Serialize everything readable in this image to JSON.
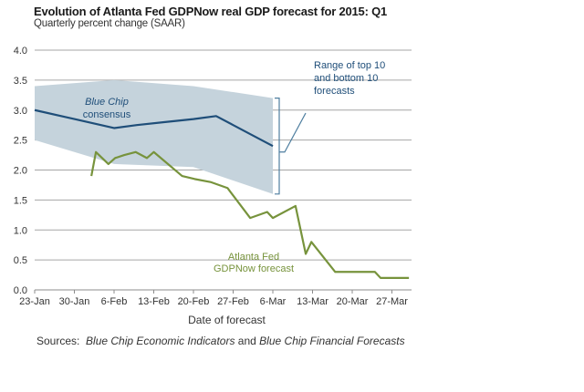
{
  "chart_data": {
    "type": "line",
    "title": "Evolution of Atlanta Fed GDPNow real GDP forecast for 2015: Q1",
    "subtitle": "Quarterly percent change (SAAR)",
    "xlabel": "Date of forecast",
    "ylabel": "",
    "ylim": [
      0,
      4
    ],
    "yticks": [
      "0.0",
      "0.5",
      "1.0",
      "1.5",
      "2.0",
      "2.5",
      "3.0",
      "3.5",
      "4.0"
    ],
    "xlim_days": [
      0,
      67
    ],
    "x_day0": "23-Jan",
    "xticks": [
      {
        "day": 0,
        "label": "23-Jan"
      },
      {
        "day": 7,
        "label": "30-Jan"
      },
      {
        "day": 14,
        "label": "6-Feb"
      },
      {
        "day": 21,
        "label": "13-Feb"
      },
      {
        "day": 28,
        "label": "20-Feb"
      },
      {
        "day": 35,
        "label": "27-Feb"
      },
      {
        "day": 42,
        "label": "6-Mar"
      },
      {
        "day": 49,
        "label": "13-Mar"
      },
      {
        "day": 56,
        "label": "20-Mar"
      },
      {
        "day": 63,
        "label": "27-Mar"
      }
    ],
    "grid": true,
    "series": [
      {
        "name": "Blue Chip consensus",
        "color": "#1f4e79",
        "x": [
          0,
          7,
          14,
          18,
          23,
          28,
          32,
          35,
          38,
          42
        ],
        "y": [
          3.0,
          2.85,
          2.7,
          2.75,
          2.8,
          2.85,
          2.9,
          2.75,
          2.6,
          2.4
        ]
      },
      {
        "name": "Atlanta Fed GDPNow forecast",
        "color": "#77933c",
        "x": [
          10,
          10.8,
          13,
          14.2,
          15.8,
          17.8,
          19.8,
          21,
          26,
          28.2,
          31,
          34,
          38,
          41,
          42,
          46,
          47.8,
          48.8,
          53,
          60,
          61,
          66
        ],
        "y": [
          1.9,
          2.3,
          2.1,
          2.2,
          2.25,
          2.3,
          2.2,
          2.3,
          1.9,
          1.85,
          1.8,
          1.7,
          1.2,
          1.3,
          1.2,
          1.4,
          0.6,
          0.8,
          0.3,
          0.3,
          0.2,
          0.2
        ]
      }
    ],
    "band": {
      "name": "Range of top 10 and bottom 10 forecasts",
      "color": "#c5d3dc",
      "x": [
        0,
        14,
        28,
        42
      ],
      "upper": [
        3.4,
        3.5,
        3.4,
        3.2
      ],
      "lower": [
        2.5,
        2.1,
        2.05,
        1.6
      ]
    },
    "annotations": {
      "blue_chip_line1": "Blue Chip",
      "blue_chip_line2": "consensus",
      "range_line1": "Range of top 10",
      "range_line2": "and bottom 10",
      "range_line3": "forecasts",
      "gdpnow_line1": "Atlanta Fed",
      "gdpnow_line2": "GDPNow forecast"
    }
  },
  "sources": {
    "prefix": "Sources:",
    "source1": "Blue Chip Economic Indicators",
    "conjunction": "and",
    "source2": "Blue Chip Financial Forecasts"
  }
}
